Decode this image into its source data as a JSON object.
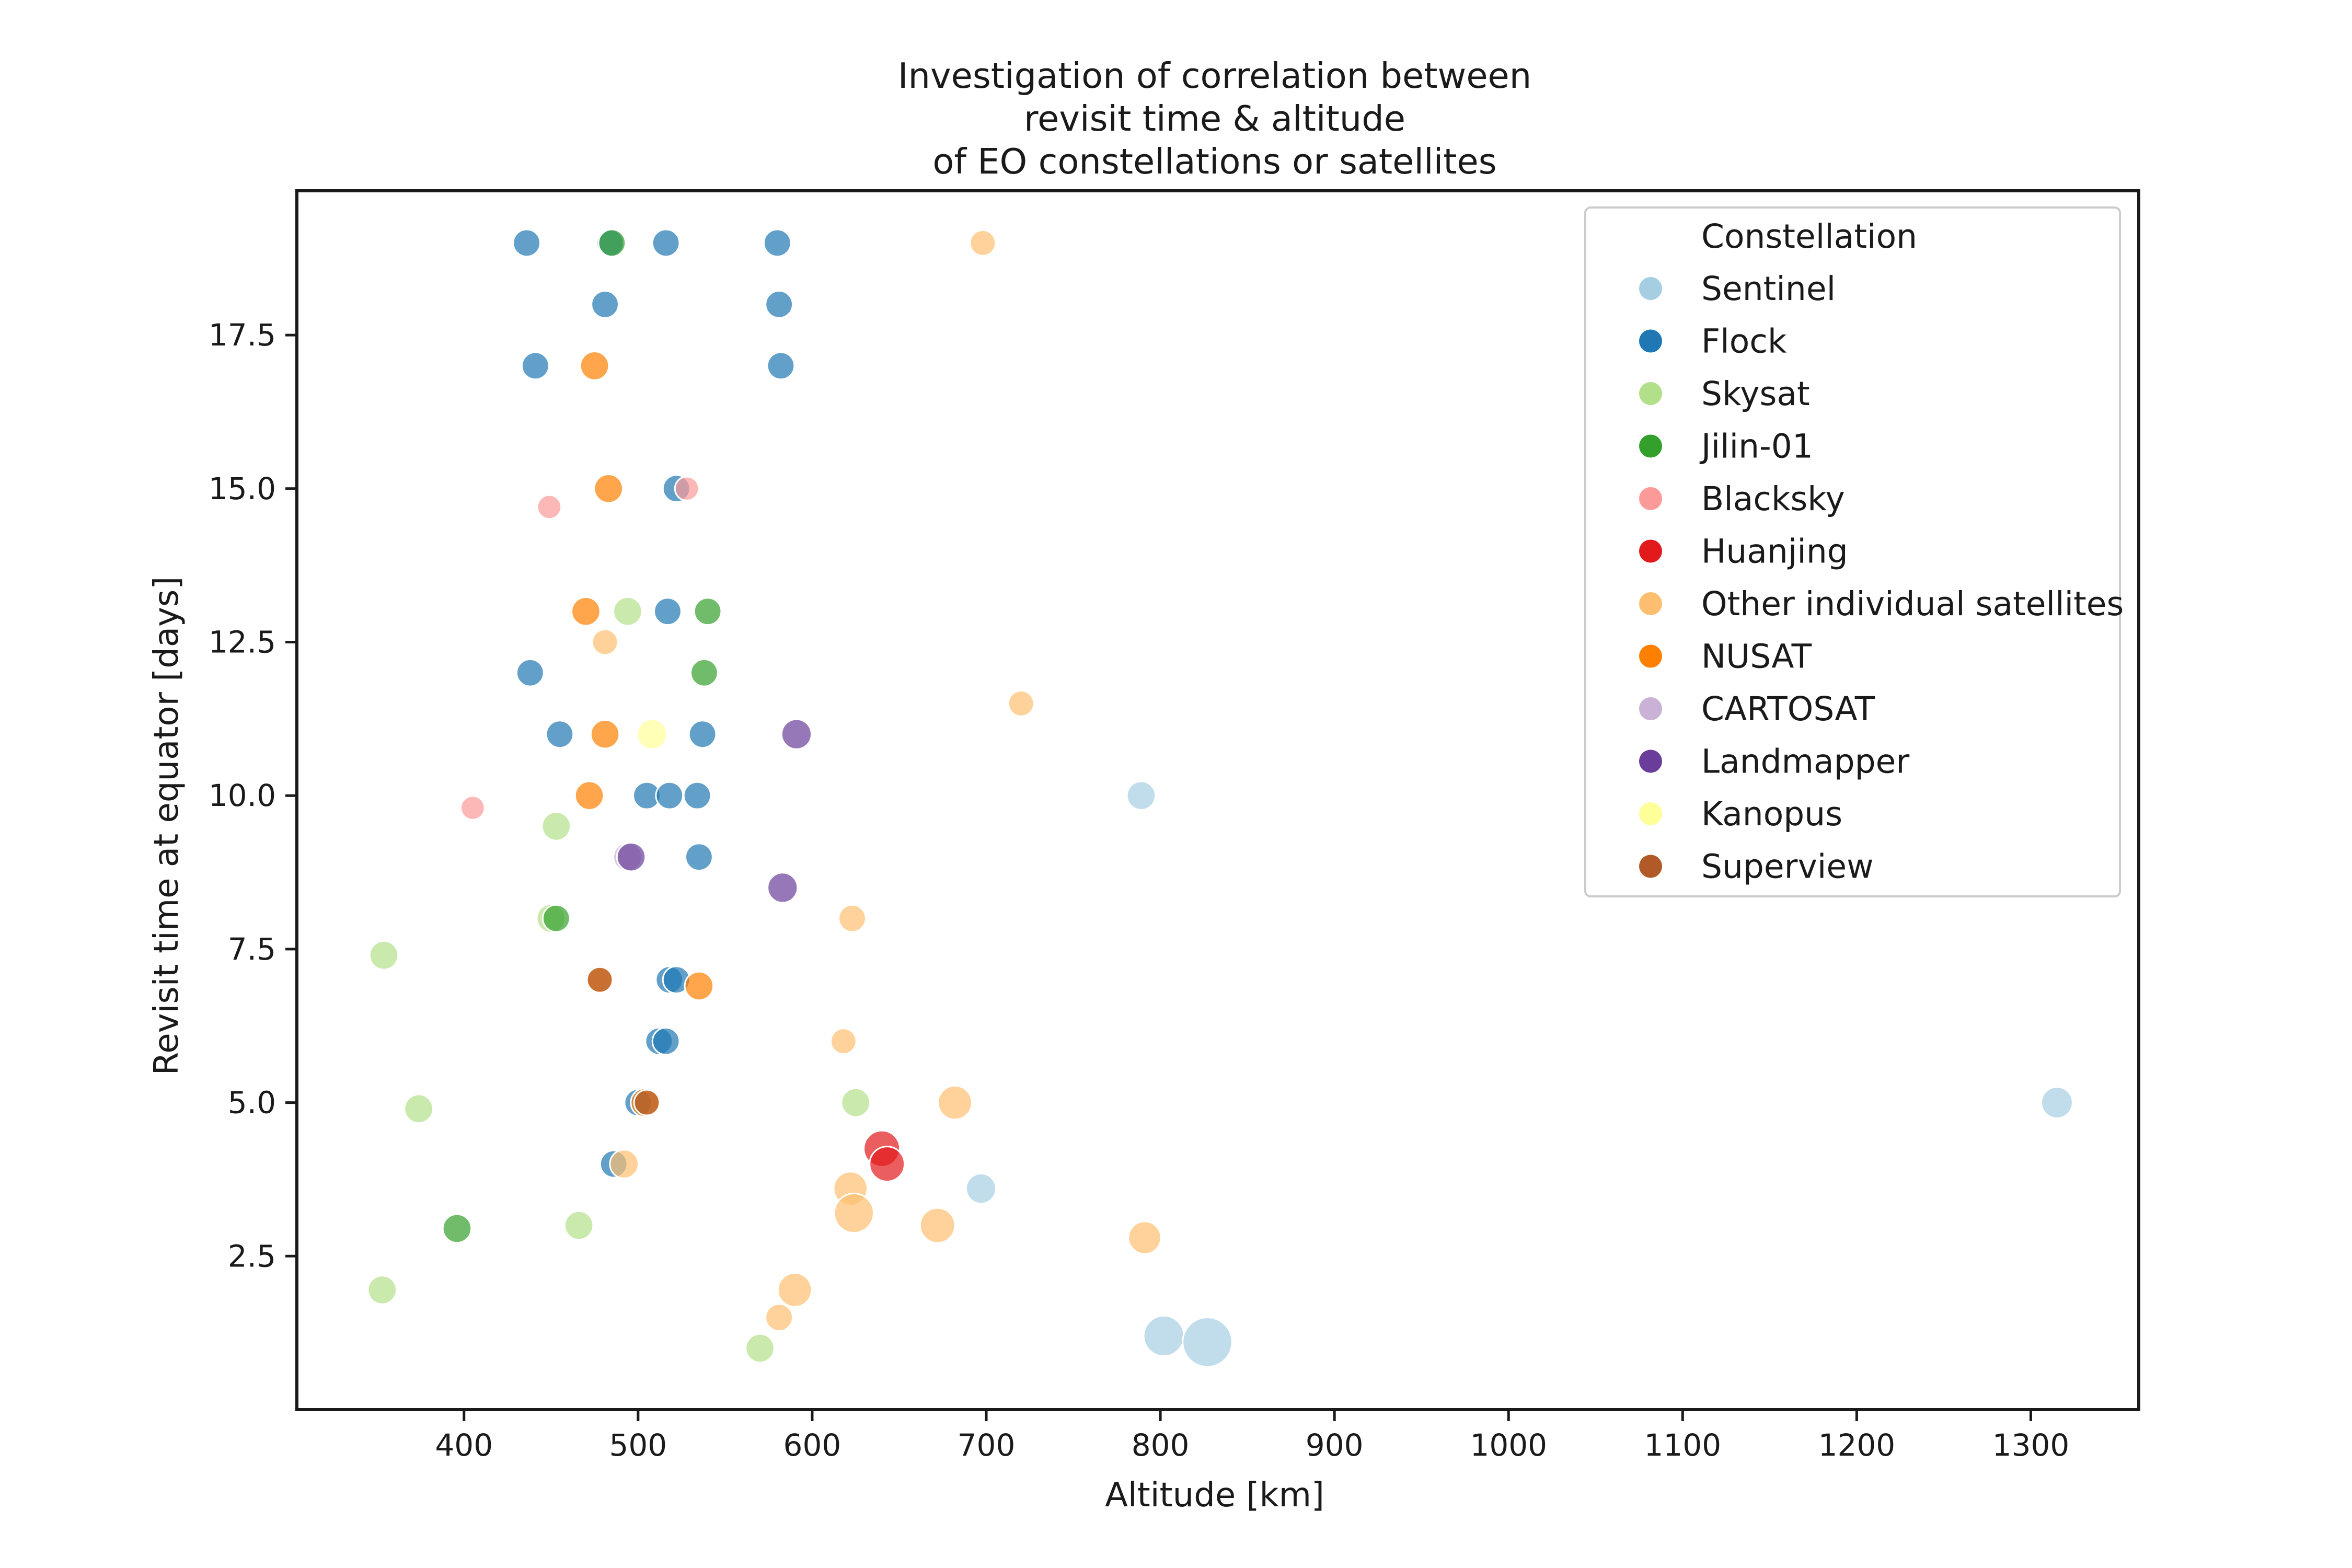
{
  "chart_data": {
    "type": "scatter",
    "title": [
      "Investigation of correlation between",
      "revisit time & altitude",
      "of EO constellations or satellites"
    ],
    "xlabel": "Altitude [km]",
    "ylabel": "Revisit time at equator [days]",
    "xlim": [
      304,
      1362
    ],
    "ylim": [
      0.0,
      19.85
    ],
    "xticks": [
      400,
      500,
      600,
      700,
      800,
      900,
      1000,
      1100,
      1200,
      1300
    ],
    "yticks": [
      2.5,
      5.0,
      7.5,
      10.0,
      12.5,
      15.0,
      17.5
    ],
    "ytick_labels": [
      "2.5",
      "5.0",
      "7.5",
      "10.0",
      "12.5",
      "15.0",
      "17.5"
    ],
    "grid": false,
    "legend_placement": "top-right",
    "legend_title": "Constellation",
    "series": [
      {
        "name": "Sentinel",
        "color": "#a6cee3",
        "points": [
          {
            "x": 789,
            "y": 10.0,
            "s": 1.0
          },
          {
            "x": 697,
            "y": 3.6,
            "s": 1.1
          },
          {
            "x": 1315,
            "y": 5.0,
            "s": 1.2
          },
          {
            "x": 802,
            "y": 1.2,
            "s": 2.0
          },
          {
            "x": 827,
            "y": 1.1,
            "s": 3.0
          }
        ]
      },
      {
        "name": "Flock",
        "color": "#1f78b4",
        "points": [
          {
            "x": 436,
            "y": 19.0,
            "s": 0.9
          },
          {
            "x": 484,
            "y": 19.0,
            "s": 0.9
          },
          {
            "x": 516,
            "y": 19.0,
            "s": 0.9
          },
          {
            "x": 580,
            "y": 19.0,
            "s": 0.9
          },
          {
            "x": 481,
            "y": 18.0,
            "s": 0.9
          },
          {
            "x": 581,
            "y": 18.0,
            "s": 0.9
          },
          {
            "x": 441,
            "y": 17.0,
            "s": 0.9
          },
          {
            "x": 582,
            "y": 17.0,
            "s": 0.9
          },
          {
            "x": 522,
            "y": 15.0,
            "s": 0.9
          },
          {
            "x": 517,
            "y": 13.0,
            "s": 0.9
          },
          {
            "x": 438,
            "y": 12.0,
            "s": 0.9
          },
          {
            "x": 455,
            "y": 11.0,
            "s": 0.9
          },
          {
            "x": 537,
            "y": 11.0,
            "s": 0.9
          },
          {
            "x": 505,
            "y": 10.0,
            "s": 0.9
          },
          {
            "x": 518,
            "y": 10.0,
            "s": 0.9
          },
          {
            "x": 534,
            "y": 10.0,
            "s": 0.9
          },
          {
            "x": 535,
            "y": 9.0,
            "s": 0.9
          },
          {
            "x": 518,
            "y": 7.0,
            "s": 0.9
          },
          {
            "x": 522,
            "y": 7.0,
            "s": 0.9
          },
          {
            "x": 512,
            "y": 6.0,
            "s": 0.9
          },
          {
            "x": 516,
            "y": 6.0,
            "s": 0.9
          },
          {
            "x": 500,
            "y": 5.0,
            "s": 0.9
          },
          {
            "x": 486,
            "y": 4.0,
            "s": 0.9
          }
        ]
      },
      {
        "name": "Skysat",
        "color": "#b2df8a",
        "points": [
          {
            "x": 494,
            "y": 13.0,
            "s": 1.0
          },
          {
            "x": 453,
            "y": 9.5,
            "s": 1.0
          },
          {
            "x": 450,
            "y": 8.0,
            "s": 1.0
          },
          {
            "x": 354,
            "y": 7.4,
            "s": 1.0
          },
          {
            "x": 374,
            "y": 4.9,
            "s": 1.0
          },
          {
            "x": 625,
            "y": 5.0,
            "s": 1.0
          },
          {
            "x": 466,
            "y": 3.0,
            "s": 1.0
          },
          {
            "x": 353,
            "y": 1.95,
            "s": 1.0
          },
          {
            "x": 570,
            "y": 1.0,
            "s": 1.0
          }
        ]
      },
      {
        "name": "Jilin-01",
        "color": "#33a02c",
        "points": [
          {
            "x": 485,
            "y": 19.0,
            "s": 0.9
          },
          {
            "x": 540,
            "y": 13.0,
            "s": 0.9
          },
          {
            "x": 538,
            "y": 12.0,
            "s": 0.9
          },
          {
            "x": 453,
            "y": 8.0,
            "s": 0.9
          },
          {
            "x": 396,
            "y": 2.95,
            "s": 1.0
          }
        ]
      },
      {
        "name": "Blacksky",
        "color": "#fb9a99",
        "points": [
          {
            "x": 449,
            "y": 14.7,
            "s": 0.7
          },
          {
            "x": 528,
            "y": 15.0,
            "s": 0.7
          },
          {
            "x": 405,
            "y": 9.8,
            "s": 0.7
          }
        ]
      },
      {
        "name": "Huanjing",
        "color": "#e31a1c",
        "points": [
          {
            "x": 640,
            "y": 4.25,
            "s": 1.6
          },
          {
            "x": 643,
            "y": 4.0,
            "s": 1.5
          }
        ]
      },
      {
        "name": "Other individual satellites",
        "color": "#fdbf6f",
        "points": [
          {
            "x": 698,
            "y": 19.0,
            "s": 0.8
          },
          {
            "x": 481,
            "y": 12.5,
            "s": 0.8
          },
          {
            "x": 720,
            "y": 11.5,
            "s": 0.8
          },
          {
            "x": 623,
            "y": 8.0,
            "s": 0.9
          },
          {
            "x": 618,
            "y": 6.0,
            "s": 0.8
          },
          {
            "x": 682,
            "y": 5.0,
            "s": 1.4
          },
          {
            "x": 622,
            "y": 3.6,
            "s": 1.4
          },
          {
            "x": 624,
            "y": 3.2,
            "s": 1.9
          },
          {
            "x": 672,
            "y": 3.0,
            "s": 1.5
          },
          {
            "x": 791,
            "y": 2.8,
            "s": 1.3
          },
          {
            "x": 590,
            "y": 1.95,
            "s": 1.4
          },
          {
            "x": 581,
            "y": 1.5,
            "s": 0.9
          },
          {
            "x": 492,
            "y": 4.0,
            "s": 1.0
          }
        ]
      },
      {
        "name": "NUSAT",
        "color": "#ff7f00",
        "points": [
          {
            "x": 475,
            "y": 17.0,
            "s": 1.0
          },
          {
            "x": 483,
            "y": 15.0,
            "s": 1.0
          },
          {
            "x": 470,
            "y": 13.0,
            "s": 1.0
          },
          {
            "x": 481,
            "y": 11.0,
            "s": 1.0
          },
          {
            "x": 472,
            "y": 10.0,
            "s": 1.0
          },
          {
            "x": 535,
            "y": 6.9,
            "s": 1.0
          },
          {
            "x": 478,
            "y": 7.0,
            "s": 1.0
          },
          {
            "x": 504,
            "y": 5.0,
            "s": 1.0
          }
        ]
      },
      {
        "name": "CARTOSAT",
        "color": "#cab2d6",
        "points": [
          {
            "x": 494,
            "y": 9.0,
            "s": 1.0
          }
        ]
      },
      {
        "name": "Landmapper",
        "color": "#6a3d9a",
        "points": [
          {
            "x": 591,
            "y": 11.0,
            "s": 1.1
          },
          {
            "x": 583,
            "y": 8.5,
            "s": 1.1
          },
          {
            "x": 496,
            "y": 9.0,
            "s": 1.0
          }
        ]
      },
      {
        "name": "Kanopus",
        "color": "#ffff99",
        "points": [
          {
            "x": 508,
            "y": 11.0,
            "s": 1.1
          }
        ]
      },
      {
        "name": "Superview",
        "color": "#b15928",
        "points": [
          {
            "x": 478,
            "y": 7.0,
            "s": 0.8
          },
          {
            "x": 505,
            "y": 5.0,
            "s": 0.8
          }
        ]
      }
    ]
  }
}
